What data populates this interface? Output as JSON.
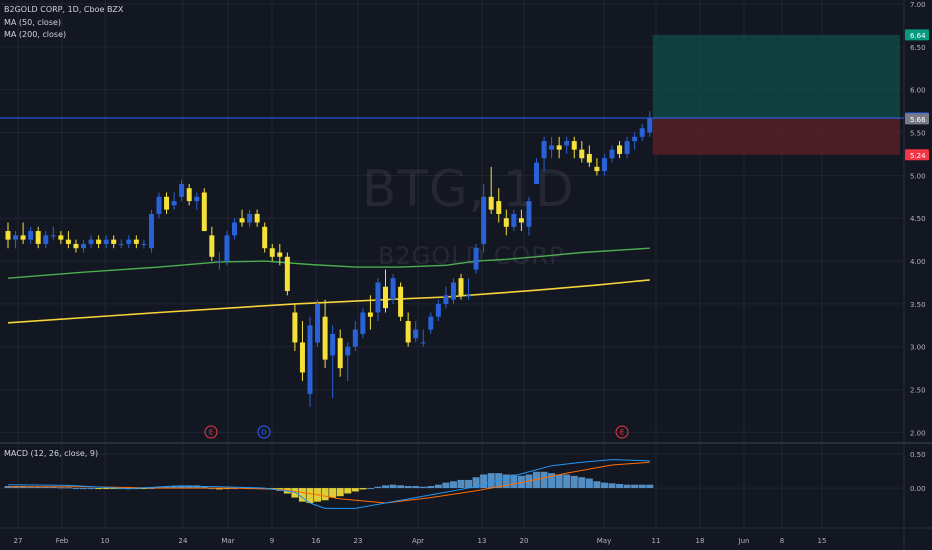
{
  "header": {
    "symbol_line": "B2GOLD CORP, 1D, Cboe BZX",
    "ma1_label": "MA (50, close)",
    "ma2_label": "MA (200, close)",
    "macd_label": "MACD (12, 26, close, 9)"
  },
  "watermark": {
    "ticker": "BTG, 1D",
    "name": "B2GOLD CORP"
  },
  "colors": {
    "background": "#131722",
    "up": "#2962d6",
    "down": "#f5e13a",
    "ma50": "#4caf50",
    "ma200": "#f7d33a",
    "macd_line": "#2196f3",
    "signal_line": "#ff6d00",
    "target_zone": "#0f4f4a",
    "stop_zone": "#5a1f27"
  },
  "axis_labels": {
    "price_ticks": [
      "7.00",
      "6.50",
      "6.00",
      "5.50",
      "5.00",
      "4.50",
      "4.00",
      "3.50",
      "3.00",
      "2.50",
      "2.00"
    ],
    "badges": [
      {
        "text": "6.64",
        "value": 6.64,
        "color": "#089981"
      },
      {
        "text": "5.67",
        "value": 5.67,
        "color": "#2962ff"
      },
      {
        "text": "5.66",
        "value": 5.66,
        "color": "#787b86"
      },
      {
        "text": "5.24",
        "value": 5.24,
        "color": "#f23645"
      }
    ],
    "macd_ticks": [
      "0.50",
      "0.00"
    ],
    "date_ticks": [
      "27",
      "Feb",
      "10",
      "24",
      "Mar",
      "9",
      "16",
      "23",
      "Apr",
      "13",
      "20",
      "May",
      "11",
      "18",
      "Jun",
      "8",
      "15"
    ]
  },
  "events": [
    {
      "text": "E",
      "color": "#f23645"
    },
    {
      "text": "D",
      "color": "#2962ff"
    },
    {
      "text": "E",
      "color": "#f23645"
    }
  ],
  "chart_data": {
    "type": "candlestick",
    "title": "B2GOLD CORP, 1D, Cboe BZX",
    "ylim": [
      1.9,
      7.0
    ],
    "candles": [
      [
        4.35,
        4.45,
        4.15,
        4.25
      ],
      [
        4.25,
        4.35,
        4.15,
        4.3
      ],
      [
        4.3,
        4.45,
        4.2,
        4.25
      ],
      [
        4.25,
        4.4,
        4.2,
        4.35
      ],
      [
        4.35,
        4.4,
        4.15,
        4.2
      ],
      [
        4.2,
        4.35,
        4.15,
        4.3
      ],
      [
        4.3,
        4.4,
        4.25,
        4.3
      ],
      [
        4.3,
        4.35,
        4.2,
        4.25
      ],
      [
        4.25,
        4.35,
        4.15,
        4.2
      ],
      [
        4.2,
        4.25,
        4.1,
        4.15
      ],
      [
        4.15,
        4.25,
        4.1,
        4.2
      ],
      [
        4.2,
        4.3,
        4.15,
        4.25
      ],
      [
        4.25,
        4.3,
        4.15,
        4.2
      ],
      [
        4.2,
        4.3,
        4.15,
        4.25
      ],
      [
        4.25,
        4.3,
        4.15,
        4.2
      ],
      [
        4.2,
        4.25,
        4.15,
        4.2
      ],
      [
        4.2,
        4.3,
        4.15,
        4.25
      ],
      [
        4.25,
        4.3,
        4.15,
        4.2
      ],
      [
        4.2,
        4.25,
        4.15,
        4.2
      ],
      [
        4.15,
        4.6,
        4.1,
        4.55
      ],
      [
        4.55,
        4.8,
        4.5,
        4.75
      ],
      [
        4.75,
        4.8,
        4.55,
        4.6
      ],
      [
        4.65,
        4.8,
        4.6,
        4.7
      ],
      [
        4.75,
        4.95,
        4.7,
        4.9
      ],
      [
        4.85,
        4.9,
        4.65,
        4.7
      ],
      [
        4.7,
        4.8,
        4.6,
        4.75
      ],
      [
        4.8,
        4.85,
        4.35,
        4.35
      ],
      [
        4.3,
        4.4,
        4.0,
        4.05
      ],
      [
        4.0,
        4.1,
        3.9,
        4.0
      ],
      [
        4.0,
        4.35,
        3.95,
        4.3
      ],
      [
        4.3,
        4.5,
        4.25,
        4.45
      ],
      [
        4.5,
        4.6,
        4.4,
        4.45
      ],
      [
        4.45,
        4.6,
        4.4,
        4.55
      ],
      [
        4.55,
        4.6,
        4.4,
        4.45
      ],
      [
        4.4,
        4.45,
        4.1,
        4.15
      ],
      [
        4.15,
        4.2,
        4.0,
        4.05
      ],
      [
        4.1,
        4.2,
        3.95,
        4.05
      ],
      [
        4.05,
        4.1,
        3.6,
        3.65
      ],
      [
        3.4,
        3.5,
        2.95,
        3.05
      ],
      [
        3.05,
        3.3,
        2.6,
        2.7
      ],
      [
        2.45,
        3.35,
        2.3,
        3.25
      ],
      [
        3.05,
        3.55,
        3.0,
        3.5
      ],
      [
        3.35,
        3.55,
        2.75,
        2.85
      ],
      [
        2.9,
        3.25,
        2.4,
        3.15
      ],
      [
        3.1,
        3.2,
        2.65,
        2.75
      ],
      [
        2.9,
        3.05,
        2.6,
        3.0
      ],
      [
        3.0,
        3.3,
        2.95,
        3.2
      ],
      [
        3.15,
        3.45,
        3.1,
        3.4
      ],
      [
        3.4,
        3.6,
        3.2,
        3.35
      ],
      [
        3.4,
        3.8,
        3.3,
        3.75
      ],
      [
        3.7,
        3.9,
        3.4,
        3.45
      ],
      [
        3.55,
        3.85,
        3.5,
        3.8
      ],
      [
        3.7,
        3.75,
        3.3,
        3.35
      ],
      [
        3.3,
        3.4,
        3.0,
        3.05
      ],
      [
        3.1,
        3.3,
        3.05,
        3.2
      ],
      [
        3.05,
        3.2,
        3.0,
        3.05
      ],
      [
        3.2,
        3.4,
        3.15,
        3.35
      ],
      [
        3.35,
        3.55,
        3.3,
        3.5
      ],
      [
        3.5,
        3.7,
        3.45,
        3.6
      ],
      [
        3.55,
        3.8,
        3.5,
        3.75
      ],
      [
        3.8,
        3.85,
        3.55,
        3.6
      ],
      [
        3.6,
        3.8,
        3.55,
        3.6
      ],
      [
        3.9,
        4.2,
        3.85,
        4.15
      ],
      [
        4.2,
        4.9,
        4.1,
        4.75
      ],
      [
        4.75,
        5.1,
        4.55,
        4.6
      ],
      [
        4.7,
        4.85,
        4.45,
        4.55
      ],
      [
        4.5,
        4.6,
        4.3,
        4.4
      ],
      [
        4.4,
        4.6,
        4.35,
        4.55
      ],
      [
        4.5,
        4.6,
        4.35,
        4.45
      ],
      [
        4.4,
        4.75,
        4.3,
        4.7
      ],
      [
        4.9,
        5.2,
        4.9,
        5.15
      ],
      [
        5.2,
        5.45,
        5.05,
        5.4
      ],
      [
        5.3,
        5.45,
        5.2,
        5.35
      ],
      [
        5.35,
        5.45,
        5.2,
        5.3
      ],
      [
        5.35,
        5.45,
        5.25,
        5.4
      ],
      [
        5.4,
        5.45,
        5.2,
        5.3
      ],
      [
        5.3,
        5.4,
        5.15,
        5.2
      ],
      [
        5.25,
        5.35,
        5.1,
        5.15
      ],
      [
        5.1,
        5.2,
        5.0,
        5.05
      ],
      [
        5.05,
        5.25,
        5.0,
        5.2
      ],
      [
        5.2,
        5.35,
        5.15,
        5.3
      ],
      [
        5.35,
        5.4,
        5.2,
        5.25
      ],
      [
        5.25,
        5.45,
        5.2,
        5.4
      ],
      [
        5.4,
        5.5,
        5.3,
        5.45
      ],
      [
        5.45,
        5.6,
        5.4,
        5.55
      ],
      [
        5.5,
        5.75,
        5.45,
        5.67
      ]
    ],
    "ma50": [
      [
        0,
        3.8
      ],
      [
        10,
        3.87
      ],
      [
        20,
        3.93
      ],
      [
        28,
        3.99
      ],
      [
        34,
        4.0
      ],
      [
        40,
        3.96
      ],
      [
        46,
        3.93
      ],
      [
        52,
        3.93
      ],
      [
        58,
        3.95
      ],
      [
        62,
        4.0
      ],
      [
        66,
        4.02
      ],
      [
        70,
        4.05
      ],
      [
        76,
        4.1
      ],
      [
        85,
        4.15
      ]
    ],
    "ma200": [
      [
        0,
        3.28
      ],
      [
        20,
        3.4
      ],
      [
        38,
        3.5
      ],
      [
        50,
        3.55
      ],
      [
        58,
        3.58
      ],
      [
        64,
        3.62
      ],
      [
        70,
        3.66
      ],
      [
        78,
        3.72
      ],
      [
        85,
        3.78
      ]
    ],
    "position": {
      "target": 6.64,
      "entry": 5.67,
      "stop": 5.24
    },
    "macd": {
      "ylim": [
        -0.5,
        0.62
      ],
      "hist": [
        0.03,
        0.03,
        0.03,
        0.02,
        0.02,
        0.02,
        0.02,
        0.01,
        0.01,
        0.0,
        0.0,
        0.0,
        -0.01,
        -0.01,
        -0.01,
        -0.01,
        -0.01,
        -0.01,
        -0.01,
        0.0,
        0.02,
        0.03,
        0.03,
        0.04,
        0.04,
        0.04,
        0.02,
        0.0,
        -0.02,
        -0.01,
        0.0,
        0.01,
        0.01,
        0.01,
        0.0,
        -0.02,
        -0.04,
        -0.08,
        -0.14,
        -0.2,
        -0.22,
        -0.2,
        -0.18,
        -0.14,
        -0.12,
        -0.08,
        -0.05,
        -0.02,
        0.0,
        0.02,
        0.04,
        0.05,
        0.04,
        0.03,
        0.03,
        0.02,
        0.03,
        0.05,
        0.08,
        0.1,
        0.12,
        0.12,
        0.16,
        0.2,
        0.22,
        0.22,
        0.2,
        0.2,
        0.18,
        0.2,
        0.24,
        0.24,
        0.22,
        0.2,
        0.2,
        0.18,
        0.16,
        0.14,
        0.1,
        0.08,
        0.07,
        0.06,
        0.05,
        0.05,
        0.05,
        0.05
      ],
      "macd_line": [
        [
          0,
          0.05
        ],
        [
          8,
          0.04
        ],
        [
          16,
          -0.01
        ],
        [
          22,
          0.03
        ],
        [
          28,
          0.02
        ],
        [
          34,
          0.0
        ],
        [
          38,
          -0.06
        ],
        [
          40,
          -0.22
        ],
        [
          42,
          -0.3
        ],
        [
          46,
          -0.3
        ],
        [
          50,
          -0.22
        ],
        [
          56,
          -0.1
        ],
        [
          62,
          0.02
        ],
        [
          66,
          0.15
        ],
        [
          72,
          0.33
        ],
        [
          76,
          0.38
        ],
        [
          80,
          0.42
        ],
        [
          85,
          0.4
        ]
      ],
      "signal_line": [
        [
          0,
          0.02
        ],
        [
          10,
          0.02
        ],
        [
          20,
          0.0
        ],
        [
          30,
          0.0
        ],
        [
          36,
          -0.02
        ],
        [
          40,
          -0.08
        ],
        [
          44,
          -0.16
        ],
        [
          50,
          -0.22
        ],
        [
          56,
          -0.14
        ],
        [
          62,
          -0.04
        ],
        [
          68,
          0.08
        ],
        [
          74,
          0.22
        ],
        [
          80,
          0.34
        ],
        [
          85,
          0.38
        ]
      ]
    }
  }
}
